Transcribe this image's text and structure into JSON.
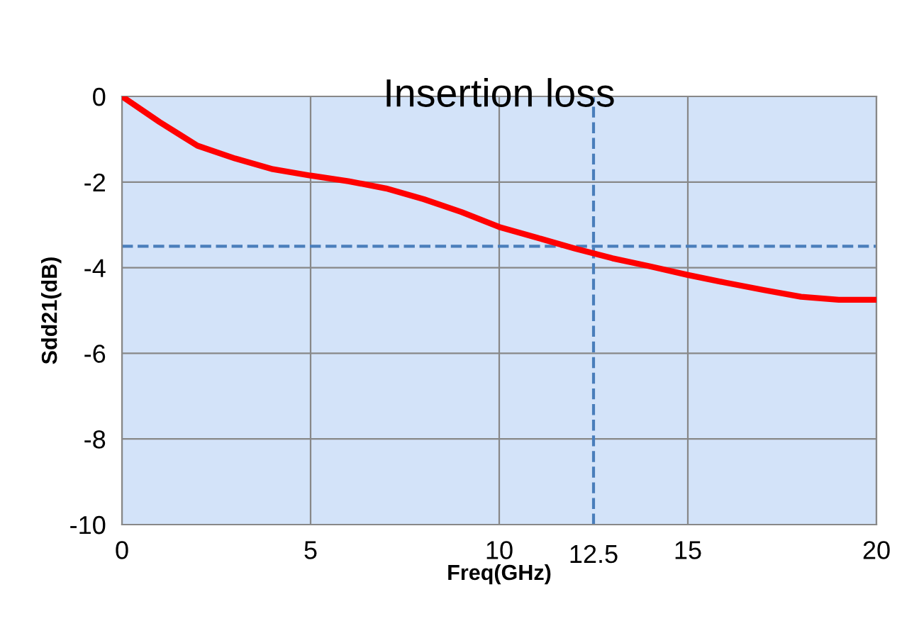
{
  "chart_data": {
    "type": "line",
    "title": "Insertion loss",
    "xlabel": "Freq(GHz)",
    "ylabel": "Sdd21(dB)",
    "x": [
      0,
      1,
      2,
      3,
      4,
      5,
      6,
      7,
      8,
      9,
      10,
      11,
      12,
      13,
      14,
      15,
      16,
      17,
      18,
      19,
      20
    ],
    "series": [
      {
        "color": "#ff0000",
        "values": [
          0,
          -0.6,
          -1.15,
          -1.45,
          -1.7,
          -1.85,
          -1.98,
          -2.15,
          -2.4,
          -2.7,
          -3.05,
          -3.3,
          -3.55,
          -3.78,
          -3.97,
          -4.17,
          -4.35,
          -4.52,
          -4.68,
          -4.75,
          -4.75
        ]
      }
    ],
    "xlim": [
      0,
      20
    ],
    "ylim": [
      -10,
      0
    ],
    "xticks": [
      0,
      5,
      10,
      15,
      20
    ],
    "yticks": [
      -10,
      -8,
      -6,
      -4,
      -2,
      0
    ],
    "grid": true,
    "ref_lines": [
      {
        "axis": "y",
        "value": -3.5,
        "color": "#4a7ebb",
        "line_style": "dashed"
      },
      {
        "axis": "x",
        "value": 12.5,
        "label": "12.5",
        "color": "#4a7ebb",
        "line_style": "dashed"
      }
    ]
  }
}
